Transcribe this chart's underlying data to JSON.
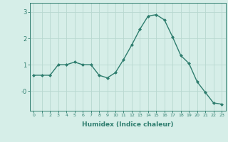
{
  "xlabel": "Humidex (Indice chaleur)",
  "ylabel": "",
  "x": [
    0,
    1,
    2,
    3,
    4,
    5,
    6,
    7,
    8,
    9,
    10,
    11,
    12,
    13,
    14,
    15,
    16,
    17,
    18,
    19,
    20,
    21,
    22,
    23
  ],
  "y": [
    0.6,
    0.6,
    0.6,
    1.0,
    1.0,
    1.1,
    1.0,
    1.0,
    0.6,
    0.5,
    0.7,
    1.2,
    1.75,
    2.35,
    2.85,
    2.9,
    2.7,
    2.05,
    1.35,
    1.05,
    0.35,
    -0.05,
    -0.45,
    -0.5
  ],
  "line_color": "#2e7d6e",
  "marker": "D",
  "markersize": 2.0,
  "bg_color": "#d6eee8",
  "grid_color": "#b8d8d0",
  "axis_color": "#2e7d6e",
  "ylim": [
    -0.75,
    3.35
  ],
  "yticks": [
    0,
    1,
    2,
    3
  ],
  "ytick_labels": [
    "-0",
    "1",
    "2",
    "3"
  ],
  "xtick_labels": [
    "0",
    "1",
    "2",
    "3",
    "4",
    "5",
    "6",
    "7",
    "8",
    "9",
    "10",
    "11",
    "12",
    "13",
    "14",
    "15",
    "16",
    "17",
    "18",
    "19",
    "20",
    "21",
    "22",
    "23"
  ]
}
